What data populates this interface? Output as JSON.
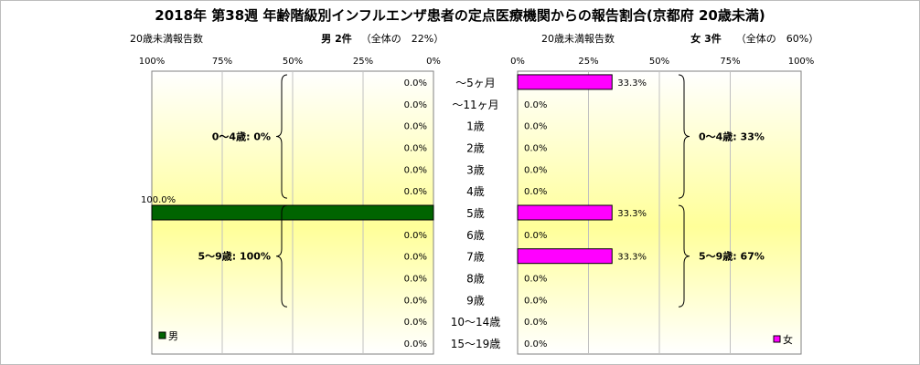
{
  "chart_data": {
    "type": "bar",
    "title": "2018年 第38週 年齢階級別インフルエンザ患者の定点医療機関からの報告割合(京都府 20歳未満)",
    "categories": [
      "～5ヶ月",
      "～11ヶ月",
      "1歳",
      "2歳",
      "3歳",
      "4歳",
      "5歳",
      "6歳",
      "7歳",
      "8歳",
      "9歳",
      "10～14歳",
      "15～19歳"
    ],
    "xlim": [
      0,
      100
    ],
    "xticks": [
      "100%",
      "75%",
      "50%",
      "25%",
      "0%"
    ],
    "xticks_right": [
      "0%",
      "25%",
      "50%",
      "75%",
      "100%"
    ],
    "grid": true,
    "series": [
      {
        "name": "男",
        "side": "left",
        "color": "#006400",
        "values": [
          0,
          0,
          0,
          0,
          0,
          0,
          100,
          0,
          0,
          0,
          0,
          0,
          0
        ],
        "labels": [
          "0.0%",
          "0.0%",
          "0.0%",
          "0.0%",
          "0.0%",
          "0.0%",
          "100.0%",
          "0.0%",
          "0.0%",
          "0.0%",
          "0.0%",
          "0.0%",
          "0.0%"
        ],
        "header_left": "20歳未満報告数",
        "header_right": "男 2件",
        "header_share": "（全体の　22%）",
        "groups": [
          {
            "label": "0～4歳: 0%",
            "from": 0,
            "to": 5
          },
          {
            "label": "5～9歳: 100%",
            "from": 6,
            "to": 10
          }
        ]
      },
      {
        "name": "女",
        "side": "right",
        "color": "#ff00ff",
        "values": [
          33.3,
          0,
          0,
          0,
          0,
          0,
          33.3,
          0,
          33.3,
          0,
          0,
          0,
          0
        ],
        "labels": [
          "33.3%",
          "0.0%",
          "0.0%",
          "0.0%",
          "0.0%",
          "0.0%",
          "33.3%",
          "0.0%",
          "33.3%",
          "0.0%",
          "0.0%",
          "0.0%",
          "0.0%"
        ],
        "header_left": "20歳未満報告数",
        "header_right": "女 3件",
        "header_share": "（全体の　60%）",
        "groups": [
          {
            "label": "0～4歳: 33%",
            "from": 0,
            "to": 5
          },
          {
            "label": "5～9歳: 67%",
            "from": 6,
            "to": 10
          }
        ]
      }
    ],
    "legend": [
      "男",
      "女"
    ],
    "legend_placement": "bottom-left / bottom-right"
  }
}
